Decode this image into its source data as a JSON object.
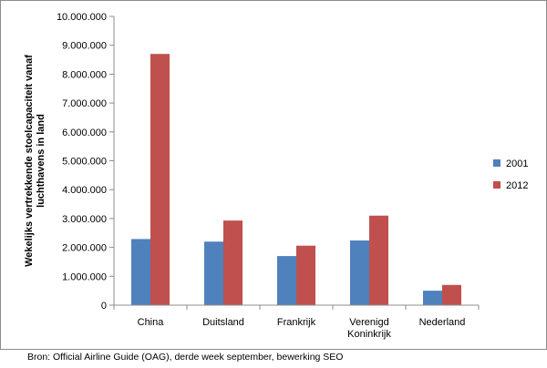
{
  "chart_data": {
    "type": "bar",
    "title": "",
    "ylabel": "Wekelijks vertrekkende stoelcapaciteit vanaf luchthavens in land",
    "ylabel_lines": [
      "Wekelijks vertrekkende stoelcapaciteit vanaf",
      "luchthavens in land"
    ],
    "xlabel": "",
    "categories": [
      "China",
      "Duitsland",
      "Frankrijk",
      "Verenigd Koninkrijk",
      "Nederland"
    ],
    "category_lines": [
      [
        "China"
      ],
      [
        "Duitsland"
      ],
      [
        "Frankrijk"
      ],
      [
        "Verenigd",
        "Koninkrijk"
      ],
      [
        "Nederland"
      ]
    ],
    "series": [
      {
        "name": "2001",
        "color": "#4f81bd",
        "values": [
          2290000,
          2200000,
          1700000,
          2240000,
          500000
        ]
      },
      {
        "name": "2012",
        "color": "#c0504d",
        "values": [
          8700000,
          2930000,
          2060000,
          3100000,
          700000
        ]
      }
    ],
    "ylim": [
      0,
      10000000
    ],
    "yticks": [
      0,
      1000000,
      2000000,
      3000000,
      4000000,
      5000000,
      6000000,
      7000000,
      8000000,
      9000000,
      10000000
    ],
    "ytick_labels": [
      "0",
      "1.000.000",
      "2.000.000",
      "3.000.000",
      "4.000.000",
      "5.000.000",
      "6.000.000",
      "7.000.000",
      "8.000.000",
      "9.000.000",
      "10.000.000"
    ],
    "grid": false,
    "legend_position": "right"
  },
  "source_note": "Bron: Official Airline Guide (OAG), derde week september, bewerking SEO"
}
